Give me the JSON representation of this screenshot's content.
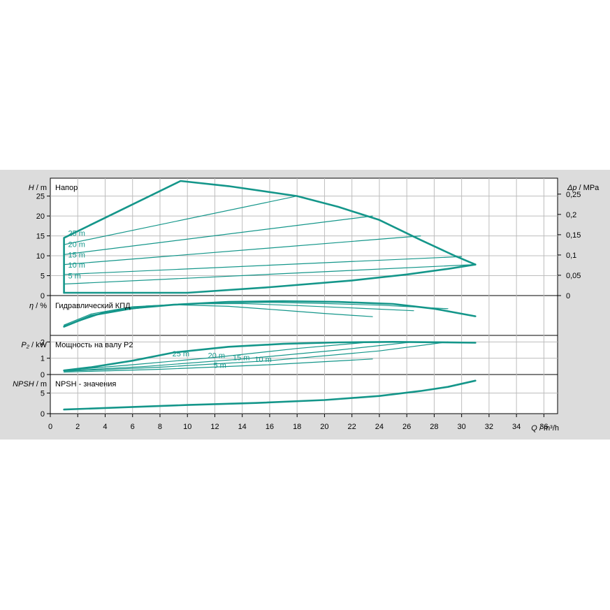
{
  "colors": {
    "curve": "#14968a",
    "grid": "#bdbdbd",
    "plot_bg": "#ffffff",
    "panel_bg": "#dcdcdc",
    "axis": "#000000"
  },
  "chart_data": {
    "type": "line",
    "xaxis": {
      "label_sym": "Q",
      "label_unit": " / m³/h",
      "range": [
        0,
        37
      ],
      "ticks": [
        0,
        2,
        4,
        6,
        8,
        10,
        12,
        14,
        16,
        18,
        20,
        22,
        24,
        26,
        28,
        30,
        32,
        34,
        36
      ],
      "tick_labels": [
        "0",
        "2",
        "4",
        "6",
        "8",
        "10",
        "12",
        "14",
        "16",
        "18",
        "20",
        "22",
        "24",
        "26",
        "28",
        "30",
        "32",
        "34",
        "36"
      ]
    },
    "panels": [
      {
        "id": "head",
        "title": "Напор",
        "ylabel_sym": "H",
        "ylabel_unit": " / m",
        "ylim": [
          0,
          29.5
        ],
        "yticks": [
          0,
          5,
          10,
          15,
          20,
          25
        ],
        "ytick_labels": [
          "0",
          "5",
          "10",
          "15",
          "20",
          "25"
        ],
        "right_axis": {
          "label_sym": "Δp",
          "label_unit": " / MPa",
          "ticks": [
            0,
            0.05,
            0.1,
            0.15,
            0.2,
            0.25
          ],
          "tick_labels": [
            "0",
            "0,05",
            "0,1",
            "0,15",
            "0,2",
            "0,25"
          ]
        },
        "curve_labels": [
          {
            "text": "25 m",
            "x": 1.3,
            "y": 15.0
          },
          {
            "text": "20 m",
            "x": 1.3,
            "y": 12.2
          },
          {
            "text": "15 m",
            "x": 1.3,
            "y": 9.6
          },
          {
            "text": "10 m",
            "x": 1.3,
            "y": 7.0
          },
          {
            "text": "5 m",
            "x": 1.3,
            "y": 4.3
          }
        ],
        "series": [
          {
            "name": "",
            "bold": true,
            "x": [
              1,
              1.0,
              9.5,
              13,
              18,
              21,
              24,
              27,
              29.5,
              31
            ],
            "y": [
              0.7,
              14.5,
              28.8,
              27.5,
              25,
              22.3,
              19,
              14,
              10,
              7.8
            ]
          },
          {
            "name": "",
            "bold": true,
            "x": [
              1,
              10,
              16,
              22,
              26,
              29,
              31
            ],
            "y": [
              0.7,
              0.7,
              2.1,
              3.8,
              5.3,
              6.7,
              7.8
            ]
          },
          {
            "name": "",
            "bold": false,
            "x": [
              1,
              18
            ],
            "y": [
              12.8,
              25
            ]
          },
          {
            "name": "",
            "bold": false,
            "x": [
              1,
              23.5
            ],
            "y": [
              10.3,
              20.0
            ]
          },
          {
            "name": "",
            "bold": false,
            "x": [
              1,
              27
            ],
            "y": [
              7.8,
              15.0
            ]
          },
          {
            "name": "",
            "bold": false,
            "x": [
              1,
              30
            ],
            "y": [
              5.3,
              9.8
            ]
          },
          {
            "name": "",
            "bold": false,
            "x": [
              1,
              31
            ],
            "y": [
              2.9,
              7.8
            ]
          }
        ]
      },
      {
        "id": "eff",
        "title": "Гидравлический КПД",
        "ylabel_sym": "η",
        "ylabel_unit": " / %",
        "ylim": [
          0,
          100
        ],
        "yticks": [],
        "ytick_labels": [],
        "series": [
          {
            "name": "",
            "bold": true,
            "x": [
              1,
              3,
              6,
              9,
              13,
              17,
              21,
              25,
              28,
              31
            ],
            "y": [
              22,
              50,
              68,
              77,
              84,
              86,
              84,
              79,
              67,
              48
            ]
          },
          {
            "name": "",
            "bold": false,
            "x": [
              1,
              3,
              6,
              9,
              13,
              17,
              20,
              23.5
            ],
            "y": [
              26,
              54,
              72,
              77,
              73,
              63,
              55,
              47
            ]
          },
          {
            "name": "",
            "bold": false,
            "x": [
              1,
              4,
              7,
              10,
              14,
              18,
              22,
              26.5
            ],
            "y": [
              24,
              60,
              74,
              79,
              80,
              75,
              69,
              62
            ]
          },
          {
            "name": "",
            "bold": false,
            "x": [
              1,
              4,
              8,
              12,
              16,
              20,
              24,
              29
            ],
            "y": [
              23,
              58,
              75,
              82,
              83,
              80,
              76,
              67
            ]
          }
        ]
      },
      {
        "id": "power",
        "title": "Мощность на валу P2",
        "ylabel_sym": "P₂",
        "ylabel_unit": " / kW",
        "ylim": [
          0,
          2.4
        ],
        "yticks": [
          0,
          1,
          2
        ],
        "ytick_labels": [
          "0",
          "1",
          "2"
        ],
        "curve_labels": [
          {
            "text": "25 m",
            "x": 8.9,
            "y": 1.12
          },
          {
            "text": "20 m",
            "x": 11.5,
            "y": 1.0
          },
          {
            "text": "15 m",
            "x": 13.3,
            "y": 0.88
          },
          {
            "text": "10 m",
            "x": 14.9,
            "y": 0.78
          },
          {
            "text": "5 m",
            "x": 11.9,
            "y": 0.4
          }
        ],
        "series": [
          {
            "name": "",
            "bold": true,
            "x": [
              1,
              3,
              6,
              9,
              13,
              17,
              21,
              25,
              28,
              31
            ],
            "y": [
              0.25,
              0.45,
              0.85,
              1.35,
              1.7,
              1.88,
              1.97,
              2.0,
              1.98,
              1.95
            ]
          },
          {
            "name": "",
            "bold": false,
            "x": [
              1,
              6,
              12,
              18,
              23.5
            ],
            "y": [
              0.25,
              0.6,
              1.05,
              1.6,
              2.0
            ]
          },
          {
            "name": "",
            "bold": false,
            "x": [
              1,
              7,
              14,
              21,
              26.5
            ],
            "y": [
              0.22,
              0.5,
              0.95,
              1.5,
              2.0
            ]
          },
          {
            "name": "",
            "bold": false,
            "x": [
              1,
              8,
              16,
              24,
              29
            ],
            "y": [
              0.2,
              0.45,
              0.85,
              1.45,
              2.0
            ]
          },
          {
            "name": "",
            "bold": false,
            "x": [
              1,
              8,
              16,
              23.5
            ],
            "y": [
              0.15,
              0.32,
              0.6,
              0.95
            ]
          }
        ]
      },
      {
        "id": "npsh",
        "title": "NPSH - значения",
        "ylabel_sym": "NPSH",
        "ylabel_unit": " / m",
        "ylim": [
          0,
          9.5
        ],
        "yticks": [
          0,
          5
        ],
        "ytick_labels": [
          "0",
          "5"
        ],
        "series": [
          {
            "name": "",
            "bold": true,
            "x": [
              1,
              5,
              10,
              15,
              20,
              24,
              27,
              29,
              31
            ],
            "y": [
              1.0,
              1.5,
              2.1,
              2.6,
              3.3,
              4.3,
              5.5,
              6.5,
              8.0
            ]
          }
        ]
      }
    ]
  }
}
